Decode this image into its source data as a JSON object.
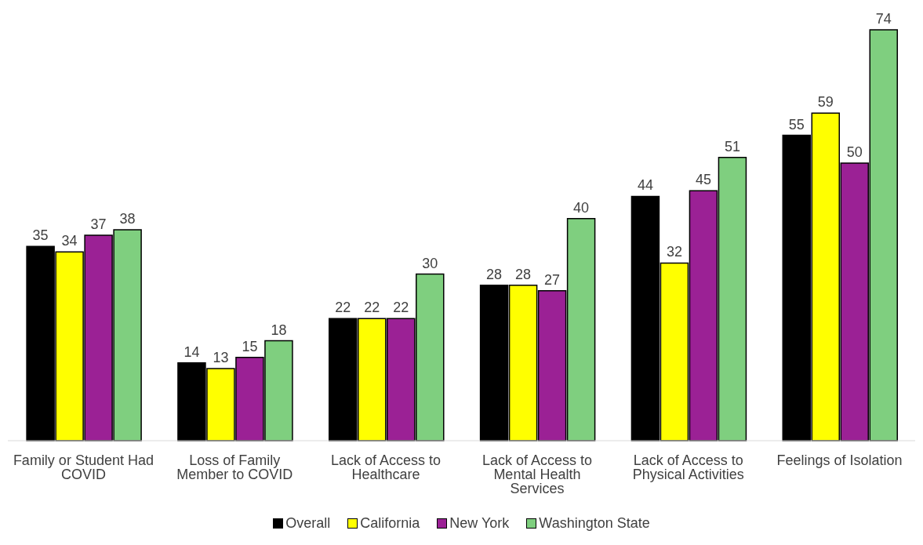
{
  "chart_data": {
    "type": "bar",
    "categories": [
      "Family or Student Had COVID",
      "Loss of Family Member to COVID",
      "Lack of Access to Healthcare",
      "Lack of Access to Mental Health Services",
      "Lack of Access to Physical Activities",
      "Feelings of Isolation"
    ],
    "series": [
      {
        "name": "Overall",
        "color": "#000000",
        "values": [
          35,
          14,
          22,
          28,
          44,
          55
        ]
      },
      {
        "name": "California",
        "color": "#ffff00",
        "values": [
          34,
          13,
          22,
          28,
          32,
          59
        ]
      },
      {
        "name": "New York",
        "color": "#9b2195",
        "values": [
          37,
          15,
          22,
          27,
          45,
          50
        ]
      },
      {
        "name": "Washington State",
        "color": "#7fcf7f",
        "values": [
          38,
          18,
          30,
          40,
          51,
          74
        ]
      }
    ],
    "data_labels": true,
    "legend": "bottom",
    "grid": false
  }
}
